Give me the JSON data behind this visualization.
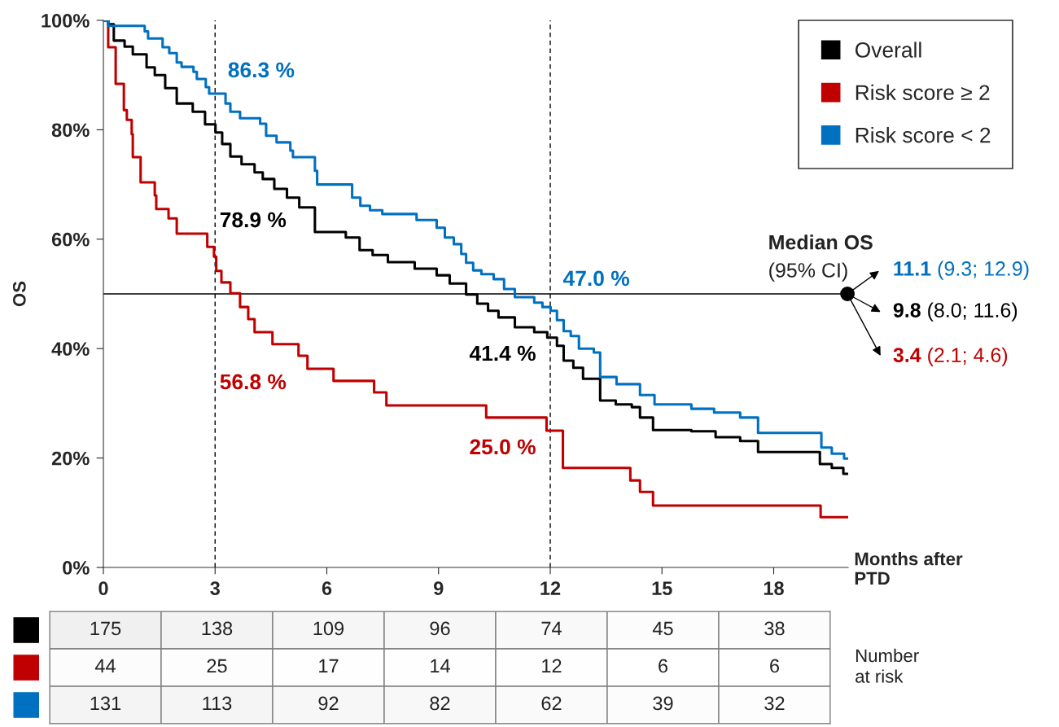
{
  "chart_data": [
    {
      "type": "step",
      "ylabel": "OS",
      "xlabel": "Months after\nPTD",
      "xlim": [
        0,
        20
      ],
      "xticks": [
        0,
        3,
        6,
        9,
        12,
        15,
        18
      ],
      "ylim": [
        0,
        100
      ],
      "yticks": [
        {
          "value": 0,
          "label": "0%"
        },
        {
          "value": 20,
          "label": "20%"
        },
        {
          "value": 40,
          "label": "40%"
        },
        {
          "value": 60,
          "label": "60%"
        },
        {
          "value": 80,
          "label": "80%"
        },
        {
          "value": 100,
          "label": "100%"
        }
      ],
      "grid": false,
      "legend": "top right",
      "marker": "none",
      "line_style": "solid",
      "series": [
        {
          "name": "Overall",
          "color": "#000000",
          "x": [
            0,
            0.13,
            0.28,
            0.57,
            0.79,
            1.16,
            1.38,
            1.66,
            1.97,
            2.4,
            2.73,
            3.01,
            3.19,
            3.41,
            3.71,
            4.06,
            4.28,
            4.59,
            4.93,
            5.26,
            5.68,
            6.51,
            6.88,
            7.23,
            7.64,
            8.36,
            8.95,
            9.3,
            9.74,
            10.04,
            10.33,
            10.61,
            11.05,
            11.57,
            11.92,
            12.18,
            12.36,
            12.62,
            12.88,
            13.34,
            13.76,
            14.19,
            14.41,
            14.76,
            15.79,
            16.44,
            17.1,
            17.58,
            19.24,
            19.56,
            19.87,
            19.98
          ],
          "values": [
            100,
            99.3,
            96.3,
            95.2,
            93.8,
            91.4,
            90,
            87.6,
            84.8,
            83.3,
            81,
            79.5,
            77.4,
            75.1,
            73.7,
            72.2,
            71,
            69.2,
            67.6,
            65.8,
            61.3,
            60.3,
            58,
            57.1,
            55.8,
            54.6,
            53.4,
            51.9,
            49.9,
            48.2,
            46.9,
            45.7,
            43.9,
            43,
            42,
            40.5,
            37.8,
            36.5,
            34.5,
            30.5,
            29.8,
            29.3,
            27.4,
            25.1,
            24.9,
            23.8,
            23.1,
            21.1,
            18.9,
            18.2,
            17.1,
            17.1
          ]
        },
        {
          "name": "Risk score ≥ 2",
          "color": "#c00000",
          "x": [
            0,
            0.13,
            0.33,
            0.55,
            0.63,
            0.76,
            0.79,
            1.0,
            1.38,
            1.42,
            1.75,
            1.97,
            2.79,
            2.97,
            3.03,
            3.17,
            3.41,
            3.67,
            3.89,
            4.06,
            4.54,
            5.24,
            5.48,
            6.18,
            7.27,
            7.6,
            10.28,
            11.9,
            12.34,
            14.15,
            14.41,
            14.76,
            19.26,
            19.98
          ],
          "values": [
            100,
            95.1,
            88.4,
            83.6,
            81.8,
            79.2,
            75,
            70.4,
            68,
            65.5,
            63.8,
            61,
            58.6,
            56.8,
            54.2,
            52.1,
            50.1,
            47.6,
            45.4,
            43,
            40.8,
            38.7,
            36.3,
            34.1,
            32,
            29.6,
            27.4,
            25,
            18.2,
            15.9,
            13.8,
            11.3,
            9.2,
            9.2
          ]
        },
        {
          "name": "Risk score < 2",
          "color": "#0070c0",
          "x": [
            0,
            0.13,
            1.11,
            1.2,
            1.59,
            1.77,
            1.97,
            2.1,
            2.42,
            2.51,
            2.75,
            2.84,
            3.28,
            3.41,
            3.67,
            4.21,
            4.37,
            4.65,
            5.02,
            5.09,
            5.68,
            5.74,
            6.68,
            6.9,
            7.16,
            7.49,
            8.41,
            8.95,
            9.17,
            9.41,
            9.61,
            9.74,
            9.93,
            10.15,
            10.48,
            10.76,
            11.05,
            11.57,
            11.79,
            12.01,
            12.18,
            12.36,
            12.55,
            12.77,
            13.17,
            13.34,
            13.78,
            14.41,
            14.8,
            15.79,
            16.4,
            17.1,
            17.58,
            19.28,
            19.56,
            19.89,
            19.98
          ],
          "values": [
            100,
            99,
            98,
            96.7,
            95.1,
            94,
            92.3,
            91.5,
            90.6,
            89.3,
            87.8,
            86.6,
            84.8,
            83.3,
            82.1,
            81.1,
            78.9,
            77.7,
            76.2,
            75,
            72.5,
            70,
            67.6,
            66.1,
            65.3,
            64.6,
            63.5,
            62.1,
            60.3,
            59.1,
            57.3,
            55.7,
            54.3,
            53.6,
            52.7,
            50.9,
            49.4,
            48.4,
            47.6,
            46.9,
            45.2,
            43.2,
            42.3,
            40,
            39.3,
            34.8,
            33.5,
            31.5,
            29.8,
            29,
            28.3,
            27.4,
            24.6,
            21.9,
            20.8,
            19.9,
            19.9
          ]
        }
      ],
      "ref_lines": [
        {
          "axis": "x",
          "value": 3,
          "line_style": "dashed",
          "color": "#000000"
        },
        {
          "axis": "x",
          "value": 12,
          "line_style": "dashed",
          "color": "#000000"
        },
        {
          "axis": "y",
          "value": 50,
          "line_style": "solid",
          "color": "#000000"
        }
      ],
      "annotations": [
        "Median OS",
        "(95% CI)",
        "86.3 %",
        "78.9 %",
        "56.8 %",
        "47.0 %",
        "41.4 %",
        "25.0 %",
        "11.1 (9.3; 12.9)",
        "9.8 (8.0; 11.6)",
        "3.4 (2.1; 4.6)"
      ]
    },
    {
      "type": "heatmap",
      "categories": [
        null,
        null,
        null,
        null,
        null,
        null,
        null
      ],
      "y_categories": [
        null,
        null,
        null
      ],
      "colors": [
        "#000000",
        "#c00000",
        "#0070c0"
      ],
      "y2label": "Number\nat risk",
      "cells": [
        [
          175,
          138,
          109,
          96,
          74,
          45,
          38
        ],
        [
          44,
          25,
          17,
          14,
          12,
          6,
          6
        ],
        [
          131,
          113,
          92,
          82,
          62,
          39,
          32
        ]
      ],
      "cell_labels": [
        [
          "175",
          "138",
          "109",
          "96",
          "74",
          "45",
          "38"
        ],
        [
          "44",
          "25",
          "17",
          "14",
          "12",
          "6",
          "6"
        ],
        [
          "131",
          "113",
          "92",
          "82",
          "62",
          "39",
          "32"
        ]
      ]
    }
  ]
}
